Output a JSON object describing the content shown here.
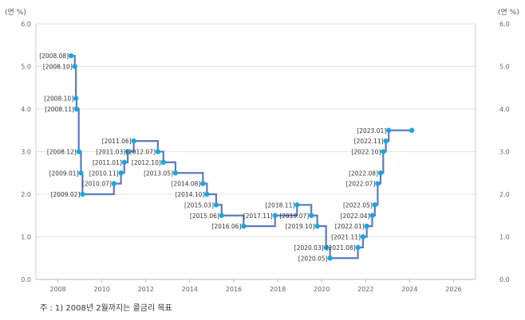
{
  "chart_data": {
    "type": "line",
    "step": true,
    "y_unit_left": "(연 %)",
    "y_unit_right": "(연 %)",
    "xlim": [
      2007,
      2027
    ],
    "ylim": [
      0,
      6
    ],
    "x_ticks": [
      "2008",
      "2010",
      "2012",
      "2014",
      "2016",
      "2018",
      "2020",
      "2022",
      "2024",
      "2026"
    ],
    "y_ticks": [
      "0.0",
      "1.0",
      "2.0",
      "3.0",
      "4.0",
      "5.0",
      "6.0"
    ],
    "grid": true,
    "line_color": "#5b7bbf",
    "marker_color": "#1aa7e0",
    "series": [
      {
        "points": [
          {
            "label": "[2008.08]",
            "x": 2008.6,
            "y": 5.25
          },
          {
            "label": "[2008.10]",
            "x": 2008.77,
            "y": 5.0
          },
          {
            "label": "[2008.10]",
            "x": 2008.82,
            "y": 4.25
          },
          {
            "label": "[2008.11]",
            "x": 2008.85,
            "y": 4.0
          },
          {
            "label": "[2008.12]",
            "x": 2008.95,
            "y": 3.0
          },
          {
            "label": "[2009.01]",
            "x": 2009.05,
            "y": 2.5
          },
          {
            "label": "[2009.02]",
            "x": 2009.12,
            "y": 2.0
          },
          {
            "label": "[2010.07]",
            "x": 2010.55,
            "y": 2.25
          },
          {
            "label": "[2010.11]",
            "x": 2010.87,
            "y": 2.5
          },
          {
            "label": "[2011.01]",
            "x": 2011.02,
            "y": 2.75
          },
          {
            "label": "[2011.03]",
            "x": 2011.18,
            "y": 3.0
          },
          {
            "label": "[2011.06]",
            "x": 2011.45,
            "y": 3.25
          },
          {
            "label": "[2012.07]",
            "x": 2012.55,
            "y": 3.0
          },
          {
            "label": "[2012.10]",
            "x": 2012.8,
            "y": 2.75
          },
          {
            "label": "[2013.05]",
            "x": 2013.35,
            "y": 2.5
          },
          {
            "label": "[2014.08]",
            "x": 2014.6,
            "y": 2.25
          },
          {
            "label": "[2014.10]",
            "x": 2014.78,
            "y": 2.0
          },
          {
            "label": "[2015.03]",
            "x": 2015.2,
            "y": 1.75
          },
          {
            "label": "[2015.06]",
            "x": 2015.45,
            "y": 1.5
          },
          {
            "label": "[2016.06]",
            "x": 2016.45,
            "y": 1.25
          },
          {
            "label": "[2017.11]",
            "x": 2017.88,
            "y": 1.5
          },
          {
            "label": "[2018.11]",
            "x": 2018.88,
            "y": 1.75
          },
          {
            "label": "[2019.07]",
            "x": 2019.53,
            "y": 1.5
          },
          {
            "label": "[2019.10]",
            "x": 2019.8,
            "y": 1.25
          },
          {
            "label": "[2020.03]",
            "x": 2020.2,
            "y": 0.75
          },
          {
            "label": "[2020.05]",
            "x": 2020.38,
            "y": 0.5
          },
          {
            "label": "[2021.08]",
            "x": 2021.65,
            "y": 0.75
          },
          {
            "label": "[2021.11]",
            "x": 2021.88,
            "y": 1.0
          },
          {
            "label": "[2022.01]",
            "x": 2022.05,
            "y": 1.25
          },
          {
            "label": "[2022.04]",
            "x": 2022.3,
            "y": 1.5
          },
          {
            "label": "[2022.05]",
            "x": 2022.42,
            "y": 1.75
          },
          {
            "label": "[2022.07]",
            "x": 2022.55,
            "y": 2.25
          },
          {
            "label": "[2022.08]",
            "x": 2022.68,
            "y": 2.5
          },
          {
            "label": "[2022.10]",
            "x": 2022.8,
            "y": 3.0
          },
          {
            "label": "[2022.11]",
            "x": 2022.92,
            "y": 3.25
          },
          {
            "label": "[2023.01]",
            "x": 2023.05,
            "y": 3.5
          },
          {
            "label": "",
            "x": 2024.1,
            "y": 3.5
          }
        ]
      }
    ]
  },
  "footnote": "주 : 1) 2008년 2월까지는 콜금리 목표"
}
